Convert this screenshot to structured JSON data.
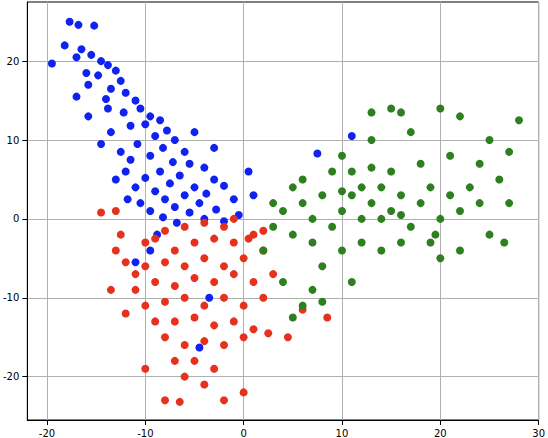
{
  "chart_data": {
    "type": "scatter",
    "marker": "circle",
    "grid": true,
    "xlim": [
      -22,
      30
    ],
    "xticks": [
      -20,
      -10,
      0,
      10,
      20,
      30
    ],
    "ylim": [
      -25.5,
      27.5
    ],
    "yticks": [
      -20,
      -10,
      0,
      10,
      20
    ],
    "series": [
      {
        "color": "#0f22f0",
        "x": [
          -19.5,
          -17.7,
          -16.8,
          -15.2,
          -18.2,
          -16.5,
          -15.5,
          -14.5,
          -17,
          -13.8,
          -14.8,
          -13,
          -12.5,
          -15.8,
          -13.5,
          -12,
          -11,
          -14,
          -10.5,
          -12.2,
          -9.5,
          -8.5,
          -10,
          -11.5,
          -7.8,
          -9,
          -13.5,
          -17,
          -7,
          -10.8,
          -8.2,
          -6,
          -9.5,
          -11.5,
          -7.2,
          -5.5,
          -12,
          -8.5,
          -4,
          -10,
          -6.5,
          -3,
          -7.5,
          -11,
          -5,
          -2,
          -9,
          -6,
          -3.8,
          -8,
          -10.5,
          -4.5,
          -1,
          -7,
          -2.8,
          -9.5,
          -5.5,
          -0.5,
          -8.2,
          -4,
          -6.8,
          -2,
          -11.8,
          -13,
          -12.5,
          -14.5,
          -15.8,
          -5,
          -3,
          0.5,
          1,
          -9.5,
          -11,
          -4.5,
          -3.5,
          11,
          7.5,
          -8.8,
          -13.8,
          -16
        ],
        "y": [
          19.7,
          25,
          24.6,
          24.5,
          22,
          21.5,
          20.8,
          20,
          20.5,
          19.5,
          18.2,
          18.8,
          17.5,
          17,
          16.5,
          16,
          15,
          15.2,
          14,
          13.5,
          13,
          12.5,
          12,
          11.8,
          11.2,
          10.5,
          11,
          15.5,
          10,
          9.5,
          9,
          8.5,
          8,
          7.5,
          7.2,
          7,
          6,
          6,
          6.5,
          5.2,
          5.5,
          5,
          4.5,
          4,
          4,
          4.2,
          3.5,
          3,
          3.2,
          2.5,
          2,
          2,
          2.5,
          1.5,
          1.2,
          1,
          0.8,
          0.5,
          0.2,
          0,
          -0.5,
          -0.3,
          2.5,
          5,
          8.5,
          9.5,
          13,
          11,
          9,
          6,
          3,
          -4,
          -5.5,
          -16.3,
          -10,
          10.5,
          8.3,
          -2,
          14,
          18.5
        ]
      },
      {
        "color": "#e6311d",
        "x": [
          -12,
          -11,
          -13,
          -10,
          -9,
          -8,
          -6,
          -4,
          -2,
          -1,
          -14.5,
          -13,
          -7,
          -5,
          -3,
          -1,
          1,
          2,
          -10,
          -8,
          -6,
          -4,
          -2,
          0,
          2,
          -11,
          -9,
          -7,
          -5,
          -3,
          -1,
          1,
          3,
          -12,
          -10,
          -8,
          -6,
          -4,
          -2,
          0,
          2,
          -9,
          -7,
          -5,
          -3,
          -1,
          1,
          2.5,
          -8,
          -6,
          -4,
          -2,
          0,
          -7,
          -5,
          -3,
          -6,
          -4,
          -8,
          -6.5,
          -2,
          0,
          -10,
          -13.5,
          -12.5,
          6,
          8.5,
          4.5,
          0.5
        ],
        "y": [
          -5.5,
          -7,
          -4,
          -3,
          -2.5,
          -1.5,
          -1,
          -0.5,
          -1,
          0,
          0.8,
          1,
          -4,
          -3,
          -2.5,
          -3,
          -2,
          -1.5,
          -6,
          -5.5,
          -6,
          -5,
          -6,
          -5,
          -4,
          -9,
          -8,
          -8.5,
          -7.5,
          -8,
          -7,
          -8,
          -7,
          -12,
          -11,
          -10.5,
          -10,
          -11,
          -10,
          -11,
          -10,
          -13,
          -13,
          -12.5,
          -13.5,
          -13,
          -14,
          -14.5,
          -15,
          -16,
          -15.5,
          -16,
          -15,
          -18,
          -18,
          -19,
          -20,
          -21,
          -23,
          -23.2,
          -23,
          -22,
          -19,
          -9,
          -2,
          -11.5,
          -12.5,
          -15,
          -2.5
        ]
      },
      {
        "color": "#2e7f20",
        "x": [
          3,
          4,
          5,
          6,
          7,
          8,
          7,
          9,
          10,
          11,
          12,
          13,
          14,
          15,
          16,
          17,
          18,
          19,
          20,
          21,
          22,
          23,
          24,
          26,
          27,
          28,
          25,
          22,
          20,
          16,
          15,
          17,
          13,
          10,
          9,
          11,
          13,
          15,
          18,
          21,
          24,
          12,
          14,
          16,
          19,
          22,
          20,
          25,
          10,
          8,
          7,
          8,
          11,
          5,
          6,
          4,
          6,
          5,
          3,
          2,
          12,
          14,
          10,
          16,
          19.5,
          13,
          26.5,
          27
        ],
        "y": [
          -1,
          1,
          -2,
          2,
          0,
          3,
          -3,
          -1,
          1,
          3,
          0,
          2,
          4,
          1,
          3,
          -1,
          2,
          4,
          0,
          3,
          1,
          4,
          2,
          5,
          8.5,
          12.5,
          10,
          13,
          14,
          13.5,
          14,
          11,
          10,
          8,
          6,
          6,
          6.5,
          6,
          7,
          8,
          7,
          -3,
          -4,
          -3,
          -3,
          -4,
          -5,
          -2,
          -4,
          -6,
          -9,
          -10.5,
          -8,
          -12.5,
          -11,
          -8,
          5,
          4,
          2,
          -4,
          4,
          0,
          3.5,
          0.5,
          -2,
          13.5,
          -3,
          2
        ]
      }
    ]
  }
}
